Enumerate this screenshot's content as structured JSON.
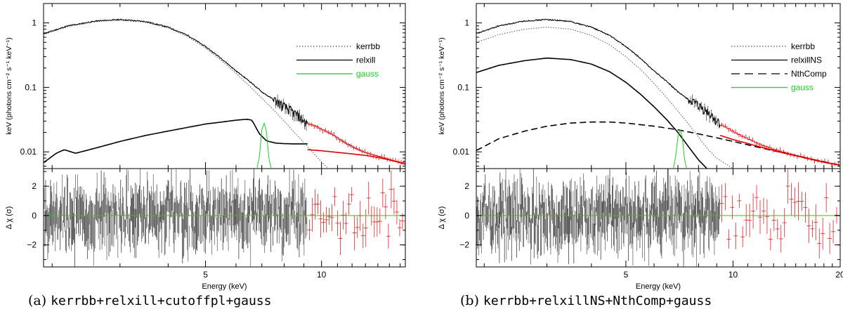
{
  "figure": {
    "captions": [
      {
        "label": "(a)",
        "model": "kerrbb+relxill+cutoffpl+gauss"
      },
      {
        "label": "(b)",
        "model": "kerrbb+relxillNS+NthComp+gauss"
      }
    ]
  },
  "chart_data": [
    {
      "type": "line",
      "panel": "a",
      "ylabel_top": "keV (photons cm⁻² s⁻¹ keV⁻¹)",
      "ylabel_bottom": "Δ χ (σ)",
      "xlabel": "Energy (keV)",
      "x_scale": "log",
      "y_scale_top": "log",
      "xlim": [
        1.9,
        16.5
      ],
      "ylim_top": [
        0.0055,
        2.0
      ],
      "ylim_bottom": [
        -3.5,
        3.2
      ],
      "x_ticks": [
        "5",
        "10"
      ],
      "y_ticks_top": [
        "0.01",
        "0.1",
        "1"
      ],
      "y_ticks_bottom": [
        "−2",
        "0",
        "2"
      ],
      "legend": {
        "position": "right",
        "entries": [
          {
            "label": "kerrbb",
            "style": "dotted",
            "color": "#555555"
          },
          {
            "label": "relxill",
            "style": "solid",
            "color": "#000000"
          },
          {
            "label": "gauss",
            "style": "solid",
            "color": "#22cc22"
          }
        ]
      },
      "series": [
        {
          "name": "data",
          "color": "#000000",
          "x": [
            1.9,
            2.2,
            2.6,
            3.0,
            3.5,
            4.0,
            4.5,
            5.0,
            5.5,
            6.0,
            6.5,
            7.0,
            7.5,
            8.0,
            8.5,
            9.0,
            9.2
          ],
          "y": [
            0.68,
            0.9,
            1.07,
            1.13,
            1.05,
            0.86,
            0.64,
            0.43,
            0.28,
            0.18,
            0.125,
            0.085,
            0.065,
            0.05,
            0.04,
            0.03,
            0.027
          ]
        },
        {
          "name": "kerrbb",
          "color": "#555555",
          "x": [
            1.9,
            2.2,
            2.6,
            3.0,
            3.5,
            4.0,
            4.5,
            5.0,
            5.5,
            6.0,
            6.5,
            7.0,
            7.5,
            8.0,
            8.5,
            9.0,
            10.0,
            11.0
          ],
          "y": [
            0.66,
            0.88,
            1.05,
            1.1,
            1.02,
            0.83,
            0.61,
            0.41,
            0.26,
            0.165,
            0.105,
            0.068,
            0.045,
            0.03,
            0.02,
            0.014,
            0.007,
            0.004
          ]
        },
        {
          "name": "relxill",
          "color": "#000000",
          "x": [
            1.9,
            2.05,
            2.15,
            2.3,
            2.6,
            3.0,
            3.5,
            4.0,
            4.5,
            5.0,
            5.5,
            6.0,
            6.4,
            6.6,
            6.9,
            7.2,
            7.6,
            8.0,
            8.5,
            9.0,
            9.2
          ],
          "y": [
            0.0068,
            0.0095,
            0.0108,
            0.0095,
            0.0115,
            0.0145,
            0.018,
            0.021,
            0.024,
            0.027,
            0.029,
            0.031,
            0.032,
            0.031,
            0.019,
            0.0148,
            0.0137,
            0.0134,
            0.0133,
            0.0133,
            0.0133
          ]
        },
        {
          "name": "gauss",
          "color": "#22cc22",
          "x": [
            6.8,
            6.9,
            7.0,
            7.1,
            7.2,
            7.3,
            7.4
          ],
          "y": [
            0.0055,
            0.0085,
            0.022,
            0.028,
            0.02,
            0.008,
            0.0055
          ]
        },
        {
          "name": "data-hi",
          "color": "#dd0000",
          "x": [
            9.2,
            9.6,
            10.0,
            10.5,
            11.0,
            11.5,
            12.0,
            12.5,
            13.0,
            14.0,
            15.0,
            16.0,
            16.5
          ],
          "y": [
            0.027,
            0.025,
            0.022,
            0.019,
            0.016,
            0.0135,
            0.0118,
            0.0105,
            0.0096,
            0.0085,
            0.0075,
            0.0068,
            0.0063
          ]
        },
        {
          "name": "model-hi",
          "color": "#dd0000",
          "x": [
            9.2,
            10.0,
            11.0,
            12.0,
            13.0,
            14.0,
            15.0,
            16.0,
            16.5
          ],
          "y": [
            0.0108,
            0.0104,
            0.0098,
            0.0093,
            0.0088,
            0.0082,
            0.0075,
            0.0068,
            0.0064
          ]
        }
      ]
    },
    {
      "type": "line",
      "panel": "b",
      "ylabel_top": "keV (photons cm⁻² s⁻¹ keV⁻¹)",
      "ylabel_bottom": "Δ χ (σ)",
      "xlabel": "Energy (keV)",
      "x_scale": "log",
      "y_scale_top": "log",
      "xlim": [
        1.9,
        20
      ],
      "ylim_top": [
        0.0055,
        2.0
      ],
      "ylim_bottom": [
        -3.5,
        3.2
      ],
      "x_ticks": [
        "5",
        "10",
        "20"
      ],
      "y_ticks_top": [
        "0.01",
        "0.1",
        "1"
      ],
      "y_ticks_bottom": [
        "−2",
        "0",
        "2"
      ],
      "legend": {
        "position": "right",
        "entries": [
          {
            "label": "kerrbb",
            "style": "dotted",
            "color": "#555555"
          },
          {
            "label": "relxillNS",
            "style": "solid",
            "color": "#000000"
          },
          {
            "label": "NthComp",
            "style": "dashed",
            "color": "#000000"
          },
          {
            "label": "gauss",
            "style": "solid",
            "color": "#22cc22"
          }
        ]
      },
      "series": [
        {
          "name": "data",
          "color": "#000000",
          "x": [
            1.9,
            2.2,
            2.6,
            3.0,
            3.5,
            4.0,
            4.5,
            5.0,
            5.5,
            6.0,
            6.5,
            7.0,
            7.5,
            8.0,
            8.5,
            9.0,
            9.2
          ],
          "y": [
            0.68,
            0.9,
            1.07,
            1.13,
            1.05,
            0.86,
            0.64,
            0.43,
            0.28,
            0.18,
            0.125,
            0.085,
            0.065,
            0.05,
            0.04,
            0.03,
            0.027
          ]
        },
        {
          "name": "kerrbb",
          "color": "#555555",
          "x": [
            1.9,
            2.2,
            2.6,
            3.0,
            3.5,
            4.0,
            4.5,
            5.0,
            5.5,
            6.0,
            6.5,
            7.0,
            7.5,
            8.0,
            8.5,
            9.0,
            10.0,
            11.0
          ],
          "y": [
            0.5,
            0.66,
            0.8,
            0.86,
            0.8,
            0.64,
            0.46,
            0.3,
            0.19,
            0.115,
            0.07,
            0.043,
            0.027,
            0.017,
            0.011,
            0.008,
            0.0055,
            0.004
          ]
        },
        {
          "name": "relxillNS",
          "color": "#000000",
          "x": [
            1.9,
            2.2,
            2.6,
            3.0,
            3.5,
            4.0,
            4.5,
            5.0,
            5.5,
            6.0,
            6.5,
            7.0,
            7.5,
            8.0,
            8.5
          ],
          "y": [
            0.17,
            0.22,
            0.26,
            0.285,
            0.27,
            0.23,
            0.175,
            0.12,
            0.078,
            0.05,
            0.032,
            0.02,
            0.012,
            0.0075,
            0.0053
          ]
        },
        {
          "name": "NthComp",
          "color": "#000000",
          "x": [
            1.9,
            2.2,
            2.6,
            3.0,
            3.5,
            4.0,
            4.5,
            5.0,
            6.0,
            7.0,
            8.0,
            9.0,
            10.0,
            12.0,
            14.0,
            17.0,
            20.0
          ],
          "y": [
            0.0105,
            0.016,
            0.021,
            0.025,
            0.028,
            0.029,
            0.029,
            0.028,
            0.025,
            0.022,
            0.019,
            0.0165,
            0.0145,
            0.0115,
            0.0095,
            0.0075,
            0.0062
          ]
        },
        {
          "name": "gauss",
          "color": "#22cc22",
          "x": [
            6.8,
            6.9,
            7.0,
            7.1,
            7.2,
            7.3,
            7.4
          ],
          "y": [
            0.0055,
            0.0085,
            0.017,
            0.022,
            0.017,
            0.008,
            0.0055
          ]
        },
        {
          "name": "data-hi",
          "color": "#dd0000",
          "x": [
            9.2,
            9.6,
            10.0,
            10.5,
            11.0,
            12.0,
            13.0,
            14.0,
            15.0,
            16.0,
            17.0,
            18.0,
            19.0,
            20.0
          ],
          "y": [
            0.026,
            0.023,
            0.02,
            0.0175,
            0.0155,
            0.0125,
            0.0108,
            0.0096,
            0.0087,
            0.008,
            0.0074,
            0.0069,
            0.0065,
            0.0062
          ]
        },
        {
          "name": "model-hi",
          "color": "#dd0000",
          "x": [
            9.2,
            10.0,
            11.0,
            12.0,
            13.0,
            14.0,
            15.0,
            16.0,
            17.0,
            18.0,
            19.0,
            20.0
          ],
          "y": [
            0.018,
            0.0155,
            0.0135,
            0.0118,
            0.0105,
            0.0095,
            0.0087,
            0.008,
            0.0074,
            0.0069,
            0.0065,
            0.0062
          ]
        }
      ]
    }
  ]
}
